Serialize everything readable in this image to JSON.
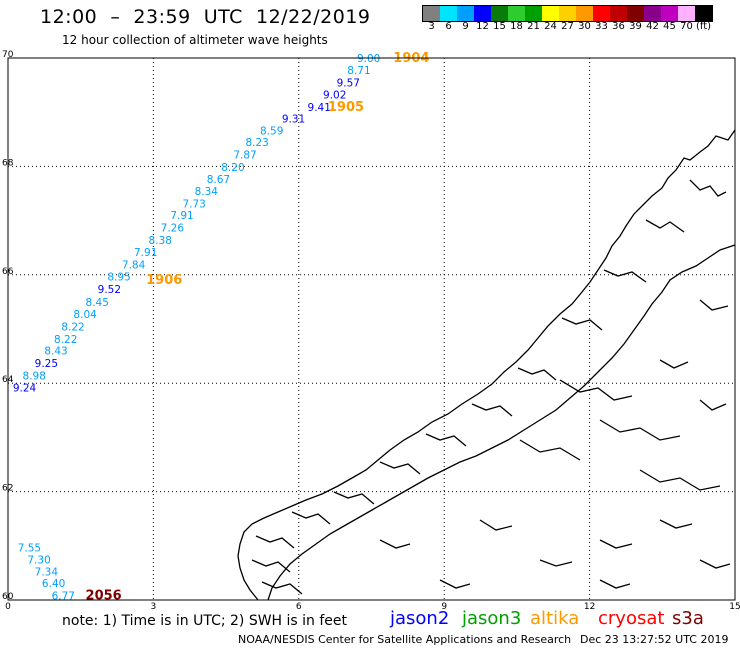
{
  "header": {
    "title": "12:00  –  23:59  UTC  12/22/2019",
    "subtitle": "12 hour collection of altimeter wave heights"
  },
  "colorbar": {
    "colors": [
      "#808080",
      "#00e5ff",
      "#00a0ff",
      "#0000ff",
      "#0a7a0a",
      "#2ecc2e",
      "#00a000",
      "#ffff00",
      "#ffd000",
      "#ff9900",
      "#ff0000",
      "#c00000",
      "#800000",
      "#8b008b",
      "#c000c0",
      "#ffb0ff",
      "#000000"
    ],
    "labels": [
      "3",
      "6",
      "9",
      "12",
      "15",
      "18",
      "21",
      "24",
      "27",
      "30",
      "33",
      "36",
      "39",
      "42",
      "45",
      "70",
      "(ft)"
    ]
  },
  "map": {
    "x_ticks": [
      "0",
      "3",
      "6",
      "9",
      "12",
      "15"
    ],
    "y_ticks": [
      "60",
      "62",
      "64",
      "66",
      "68",
      "70"
    ],
    "land_outline_color": "#000000",
    "grid_color": "#000000"
  },
  "observations": [
    {
      "lon": 7.2,
      "lat": 70.0,
      "v": "9.00",
      "c": "#00a0ff"
    },
    {
      "lon": 7.0,
      "lat": 69.78,
      "v": "8.71",
      "c": "#00a0ff"
    },
    {
      "lon": 6.78,
      "lat": 69.55,
      "v": "9.57",
      "c": "#0000ff"
    },
    {
      "lon": 6.5,
      "lat": 69.33,
      "v": "9.02",
      "c": "#0000ff"
    },
    {
      "lon": 6.18,
      "lat": 69.1,
      "v": "9.41",
      "c": "#0000ff"
    },
    {
      "lon": 5.65,
      "lat": 68.88,
      "v": "9.31",
      "c": "#0000ff"
    },
    {
      "lon": 5.2,
      "lat": 68.66,
      "v": "8.59",
      "c": "#00a0ff"
    },
    {
      "lon": 4.9,
      "lat": 68.45,
      "v": "8.23",
      "c": "#00a0ff"
    },
    {
      "lon": 4.65,
      "lat": 68.22,
      "v": "7.87",
      "c": "#00a0ff"
    },
    {
      "lon": 4.4,
      "lat": 67.99,
      "v": "8.20",
      "c": "#00a0ff"
    },
    {
      "lon": 4.1,
      "lat": 67.77,
      "v": "8.67",
      "c": "#00a0ff"
    },
    {
      "lon": 3.85,
      "lat": 67.55,
      "v": "8.34",
      "c": "#00a0ff"
    },
    {
      "lon": 3.6,
      "lat": 67.32,
      "v": "7.73",
      "c": "#00a0ff"
    },
    {
      "lon": 3.35,
      "lat": 67.1,
      "v": "7.91",
      "c": "#00a0ff"
    },
    {
      "lon": 3.15,
      "lat": 66.87,
      "v": "7.26",
      "c": "#00a0ff"
    },
    {
      "lon": 2.9,
      "lat": 66.64,
      "v": "8.38",
      "c": "#00a0ff"
    },
    {
      "lon": 2.6,
      "lat": 66.42,
      "v": "7.91",
      "c": "#00a0ff"
    },
    {
      "lon": 2.35,
      "lat": 66.19,
      "v": "7.84",
      "c": "#00a0ff"
    },
    {
      "lon": 2.05,
      "lat": 65.97,
      "v": "8.95",
      "c": "#00a0ff"
    },
    {
      "lon": 1.85,
      "lat": 65.74,
      "v": "9.52",
      "c": "#0000ff"
    },
    {
      "lon": 1.6,
      "lat": 65.5,
      "v": "8.45",
      "c": "#00a0ff"
    },
    {
      "lon": 1.35,
      "lat": 65.28,
      "v": "8.04",
      "c": "#00a0ff"
    },
    {
      "lon": 1.1,
      "lat": 65.05,
      "v": "8.22",
      "c": "#00a0ff"
    },
    {
      "lon": 0.95,
      "lat": 64.82,
      "v": "8.22",
      "c": "#00a0ff"
    },
    {
      "lon": 0.75,
      "lat": 64.6,
      "v": "8.43",
      "c": "#00a0ff"
    },
    {
      "lon": 0.55,
      "lat": 64.37,
      "v": "9.25",
      "c": "#0000ff"
    },
    {
      "lon": 0.3,
      "lat": 64.14,
      "v": "8.98",
      "c": "#00a0ff"
    },
    {
      "lon": 0.1,
      "lat": 63.92,
      "v": "9.24",
      "c": "#0000ff"
    },
    {
      "lon": 0.2,
      "lat": 60.97,
      "v": "7.55",
      "c": "#00a0ff"
    },
    {
      "lon": 0.4,
      "lat": 60.75,
      "v": "7.30",
      "c": "#00a0ff"
    },
    {
      "lon": 0.55,
      "lat": 60.53,
      "v": "7.34",
      "c": "#00a0ff"
    },
    {
      "lon": 0.7,
      "lat": 60.31,
      "v": "6.40",
      "c": "#00a0ff"
    },
    {
      "lon": 0.9,
      "lat": 60.08,
      "v": "6.77",
      "c": "#00a0ff"
    }
  ],
  "pass_times": [
    {
      "lon": 7.95,
      "lat": 70.0,
      "t": "1904",
      "c": "#ff9900"
    },
    {
      "lon": 6.6,
      "lat": 69.1,
      "t": "1905",
      "c": "#ff9900"
    },
    {
      "lon": 2.85,
      "lat": 65.9,
      "t": "1906",
      "c": "#ff9900"
    },
    {
      "lon": 1.6,
      "lat": 60.08,
      "t": "2056",
      "c": "#800000"
    }
  ],
  "footer": {
    "note": "note:  1) Time is in UTC;  2) SWH is in feet",
    "credit": "NOAA/NESDIS Center for Satellite Applications and Research",
    "timestamp": "Dec 23 13:27:52 UTC 2019"
  },
  "legend": [
    {
      "label": "jason2",
      "color": "#0000ff"
    },
    {
      "label": "jason3",
      "color": "#00a000"
    },
    {
      "label": "altika",
      "color": "#ff9900"
    },
    {
      "label": "cryosat",
      "color": "#ff0000"
    },
    {
      "label": "s3a",
      "color": "#800000"
    }
  ]
}
